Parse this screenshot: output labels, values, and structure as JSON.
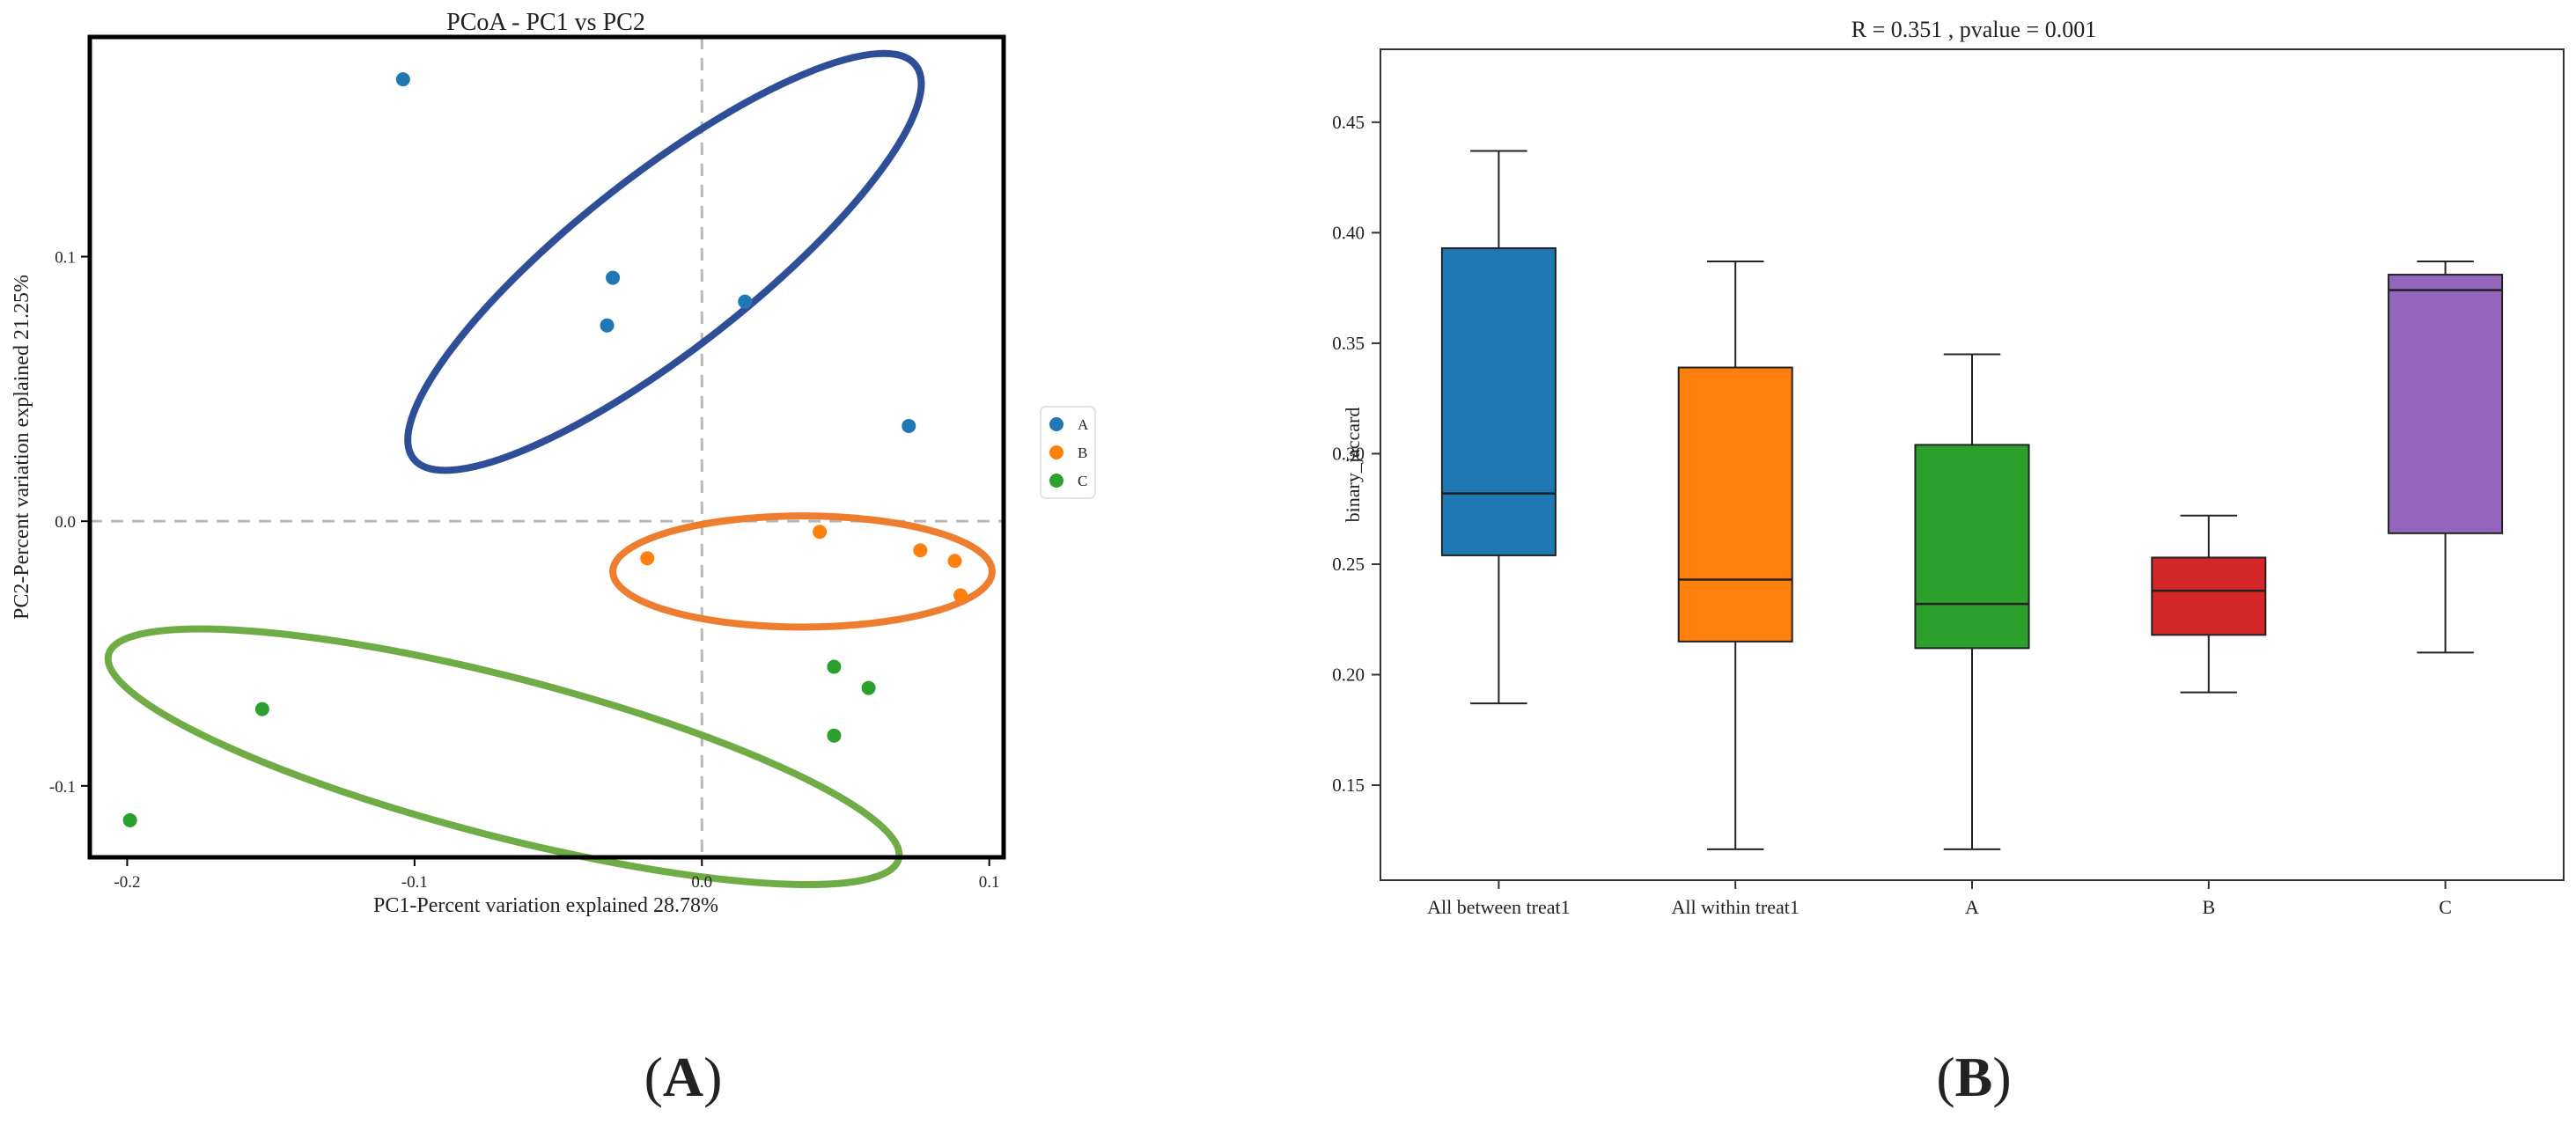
{
  "chart_data": [
    {
      "type": "scatter",
      "panel_label": "A",
      "title": "PCoA - PC1 vs PC2",
      "xlabel": "PC1-Percent variation explained 28.78%",
      "ylabel": "PC2-Percent variation explained 21.25%",
      "xlim": [
        -0.213,
        0.105
      ],
      "ylim": [
        -0.127,
        0.183
      ],
      "xticks": [
        -0.2,
        -0.1,
        0.0,
        0.1
      ],
      "xtick_labels": [
        "-0.2",
        "-0.1",
        "0.0",
        "0.1"
      ],
      "yticks": [
        -0.1,
        0.0,
        0.1
      ],
      "ytick_labels": [
        "-0.1",
        "0.0",
        "0.1"
      ],
      "reference_lines": {
        "x": 0.0,
        "y": 0.0,
        "style": "dashed"
      },
      "legend_position": "right",
      "series": [
        {
          "name": "A",
          "color": "#1f77b4",
          "ellipse_color": "#2e4f97",
          "points": [
            [
              -0.104,
              0.167
            ],
            [
              -0.031,
              0.092
            ],
            [
              -0.033,
              0.074
            ],
            [
              0.015,
              0.083
            ],
            [
              0.072,
              0.036
            ]
          ],
          "ellipse": {
            "cx": -0.013,
            "cy": 0.098,
            "a": 0.111,
            "b": 0.033,
            "angle_deg": -38.1
          }
        },
        {
          "name": "B",
          "color": "#ff7f0e",
          "ellipse_color": "#ef7d30",
          "points": [
            [
              -0.019,
              -0.014
            ],
            [
              0.041,
              -0.004
            ],
            [
              0.076,
              -0.011
            ],
            [
              0.088,
              -0.015
            ],
            [
              0.09,
              -0.028
            ]
          ],
          "ellipse": {
            "cx": 0.035,
            "cy": -0.019,
            "a": 0.066,
            "b": 0.021,
            "angle_deg": 0
          }
        },
        {
          "name": "C",
          "color": "#2ca02c",
          "ellipse_color": "#6fac46",
          "points": [
            [
              -0.199,
              -0.113
            ],
            [
              -0.153,
              -0.071
            ],
            [
              0.046,
              -0.055
            ],
            [
              0.058,
              -0.063
            ],
            [
              0.046,
              -0.081
            ]
          ],
          "ellipse": {
            "cx": -0.069,
            "cy": -0.089,
            "a": 0.142,
            "b": 0.03,
            "angle_deg": 14.5
          }
        }
      ]
    },
    {
      "type": "box",
      "panel_label": "B",
      "title": "R = 0.351 , pvalue = 0.001",
      "xlabel": "",
      "ylabel": "binary_jaccard",
      "ylim": [
        0.107,
        0.483
      ],
      "yticks": [
        0.15,
        0.2,
        0.25,
        0.3,
        0.35,
        0.4,
        0.45
      ],
      "ytick_labels": [
        "0.15",
        "0.20",
        "0.25",
        "0.30",
        "0.35",
        "0.40",
        "0.45"
      ],
      "categories": [
        "All between treat1",
        "All within treat1",
        "A",
        "B",
        "C"
      ],
      "boxes": [
        {
          "name": "All between treat1",
          "color": "#1f77b4",
          "min": 0.187,
          "q1": 0.254,
          "median": 0.282,
          "q3": 0.393,
          "max": 0.437
        },
        {
          "name": "All within treat1",
          "color": "#ff7f0e",
          "min": 0.121,
          "q1": 0.215,
          "median": 0.243,
          "q3": 0.339,
          "max": 0.387
        },
        {
          "name": "A",
          "color": "#2ca02c",
          "min": 0.121,
          "q1": 0.212,
          "median": 0.232,
          "q3": 0.304,
          "max": 0.345
        },
        {
          "name": "B",
          "color": "#d62728",
          "min": 0.192,
          "q1": 0.218,
          "median": 0.238,
          "q3": 0.253,
          "max": 0.272
        },
        {
          "name": "C",
          "color": "#9467bd",
          "min": 0.21,
          "q1": 0.264,
          "median": 0.374,
          "q3": 0.381,
          "max": 0.387
        }
      ]
    }
  ],
  "panels": {
    "left_label_open": "(",
    "left_label_letter": "A",
    "left_label_close": ")",
    "right_label_open": "(",
    "right_label_letter": "B",
    "right_label_close": ")"
  }
}
